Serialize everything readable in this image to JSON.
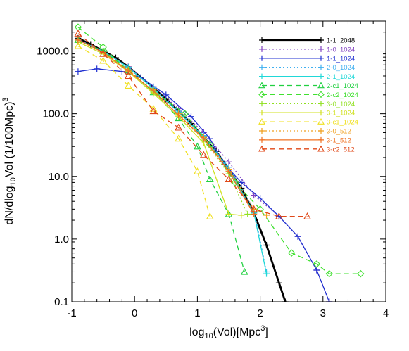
{
  "chart_data": {
    "type": "line",
    "xlabel": {
      "pre": "log",
      "sub": "10",
      "mid": "(Vol)[Mpc",
      "sup": "3",
      "post": "]"
    },
    "ylabel": {
      "pre": "dN/dlog",
      "sub": "10",
      "mid": "Vol (1/100Mpc)",
      "sup": "3"
    },
    "xlim": [
      -1,
      4
    ],
    "ylim": [
      0.1,
      3000
    ],
    "y_scale": "log",
    "x_ticks": [
      "-1",
      "0",
      "1",
      "2",
      "3",
      "4"
    ],
    "y_ticks": [
      {
        "value": 0.1,
        "label": "0.1"
      },
      {
        "value": 1,
        "label": "1.0"
      },
      {
        "value": 10,
        "label": "10.0"
      },
      {
        "value": 100,
        "label": "100.0"
      },
      {
        "value": 1000,
        "label": "1000.0"
      }
    ],
    "legend_position": "top-right",
    "series": [
      {
        "name": "1-1_2048",
        "color": "#000000",
        "dash": "solid",
        "width": 2.8,
        "marker": "plus",
        "x": [
          -0.9,
          -0.7,
          -0.5,
          -0.3,
          -0.1,
          0.1,
          0.3,
          0.5,
          0.7,
          0.9,
          1.1,
          1.3,
          1.5,
          1.7,
          1.9,
          2.1,
          2.3,
          2.4
        ],
        "y": [
          1600,
          1280,
          1000,
          780,
          560,
          380,
          260,
          170,
          110,
          70,
          42,
          25,
          13,
          6.5,
          2.6,
          0.8,
          0.2,
          0.1
        ]
      },
      {
        "name": "1-0_1024",
        "color": "#8040c0",
        "dash": "dot",
        "width": 1.3,
        "marker": "plus",
        "x": [
          -0.9,
          -0.5,
          -0.1,
          0.3,
          0.7,
          1.1,
          1.5,
          1.9,
          2.3,
          2.6,
          2.9,
          3.1
        ],
        "y": [
          1550,
          1000,
          560,
          270,
          120,
          50,
          17,
          5,
          2.3,
          1.1,
          0.32,
          0.1
        ]
      },
      {
        "name": "1-1_1024",
        "color": "#2030d0",
        "dash": "solid",
        "width": 1.3,
        "marker": "plus",
        "x": [
          -0.9,
          -0.6,
          -0.2,
          0.1,
          0.5,
          0.9,
          1.2,
          1.4,
          1.7,
          2.0,
          2.3,
          2.6,
          2.9,
          3.1
        ],
        "y": [
          470,
          520,
          470,
          380,
          200,
          90,
          40,
          17,
          8,
          4.5,
          2.3,
          1.1,
          0.32,
          0.1
        ]
      },
      {
        "name": "2-0_1024",
        "color": "#40b0f0",
        "dash": "dot",
        "width": 1.3,
        "marker": "plus",
        "x": [
          -0.9,
          -0.5,
          -0.1,
          0.3,
          0.7,
          1.1,
          1.5,
          1.9,
          2.1
        ],
        "y": [
          1500,
          980,
          540,
          260,
          110,
          45,
          14,
          3,
          0.3
        ]
      },
      {
        "name": "2-1_1024",
        "color": "#20d8d8",
        "dash": "solid",
        "width": 1.3,
        "marker": "plus",
        "x": [
          -0.9,
          -0.5,
          -0.1,
          0.3,
          0.7,
          1.1,
          1.5,
          1.9,
          2.1
        ],
        "y": [
          1500,
          990,
          550,
          250,
          105,
          43,
          13,
          2.6,
          0.28
        ]
      },
      {
        "name": "2-c1_1024",
        "color": "#20d040",
        "dash": "dash",
        "width": 1.3,
        "marker": "triangle",
        "x": [
          -0.9,
          -0.5,
          -0.1,
          0.3,
          0.7,
          1.0,
          1.2,
          1.5,
          1.75
        ],
        "y": [
          1500,
          1000,
          500,
          220,
          85,
          30,
          9,
          2.5,
          0.3
        ]
      },
      {
        "name": "2-c2_1024",
        "color": "#40e030",
        "dash": "dash",
        "width": 1.3,
        "marker": "diamond",
        "x": [
          -0.9,
          -0.5,
          -0.1,
          0.3,
          0.8,
          1.2,
          1.6,
          2.0,
          2.5,
          2.9,
          3.1,
          3.6
        ],
        "y": [
          2400,
          1150,
          470,
          230,
          100,
          32,
          8,
          3,
          0.6,
          0.4,
          0.28,
          0.28
        ]
      },
      {
        "name": "3-0_1024",
        "color": "#90e020",
        "dash": "dot",
        "width": 1.3,
        "marker": "plus",
        "x": [
          -0.9,
          -0.5,
          -0.1,
          0.3,
          0.7,
          1.1,
          1.5,
          1.8
        ],
        "y": [
          1400,
          900,
          480,
          220,
          95,
          38,
          11,
          2.5
        ]
      },
      {
        "name": "3-1_1024",
        "color": "#d0e020",
        "dash": "solid",
        "width": 1.3,
        "marker": "plus",
        "x": [
          -0.9,
          -0.5,
          -0.1,
          0.3,
          0.7,
          1.1,
          1.5,
          1.7
        ],
        "y": [
          1400,
          900,
          470,
          210,
          90,
          34,
          2.5,
          2.4
        ]
      },
      {
        "name": "3-c1_1024",
        "color": "#f0e020",
        "dash": "dash",
        "width": 1.3,
        "marker": "triangle",
        "x": [
          -0.9,
          -0.5,
          -0.1,
          0.3,
          0.7,
          1.0,
          1.2
        ],
        "y": [
          1200,
          700,
          280,
          120,
          40,
          12,
          2.3
        ]
      },
      {
        "name": "3-0_512",
        "color": "#f0a020",
        "dash": "dot",
        "width": 1.3,
        "marker": "plus",
        "x": [
          -0.9,
          -0.5,
          -0.1,
          0.3,
          0.7,
          1.1,
          1.5,
          1.9,
          2.1
        ],
        "y": [
          1500,
          950,
          500,
          240,
          100,
          42,
          13,
          3,
          2.4
        ]
      },
      {
        "name": "3-1_512",
        "color": "#f07020",
        "dash": "solid",
        "width": 1.3,
        "marker": "plus",
        "x": [
          -0.9,
          -0.5,
          -0.1,
          0.3,
          0.7,
          1.1,
          1.5,
          1.9
        ],
        "y": [
          1500,
          950,
          480,
          230,
          95,
          40,
          12,
          2.5
        ]
      },
      {
        "name": "3-c2_512",
        "color": "#e04818",
        "dash": "dash",
        "width": 1.3,
        "marker": "triangle",
        "x": [
          -0.9,
          -0.5,
          -0.1,
          0.3,
          0.7,
          1.1,
          1.5,
          1.9,
          2.3,
          2.75
        ],
        "y": [
          1900,
          900,
          400,
          110,
          60,
          22,
          9,
          3,
          2.3,
          2.3
        ]
      }
    ]
  }
}
